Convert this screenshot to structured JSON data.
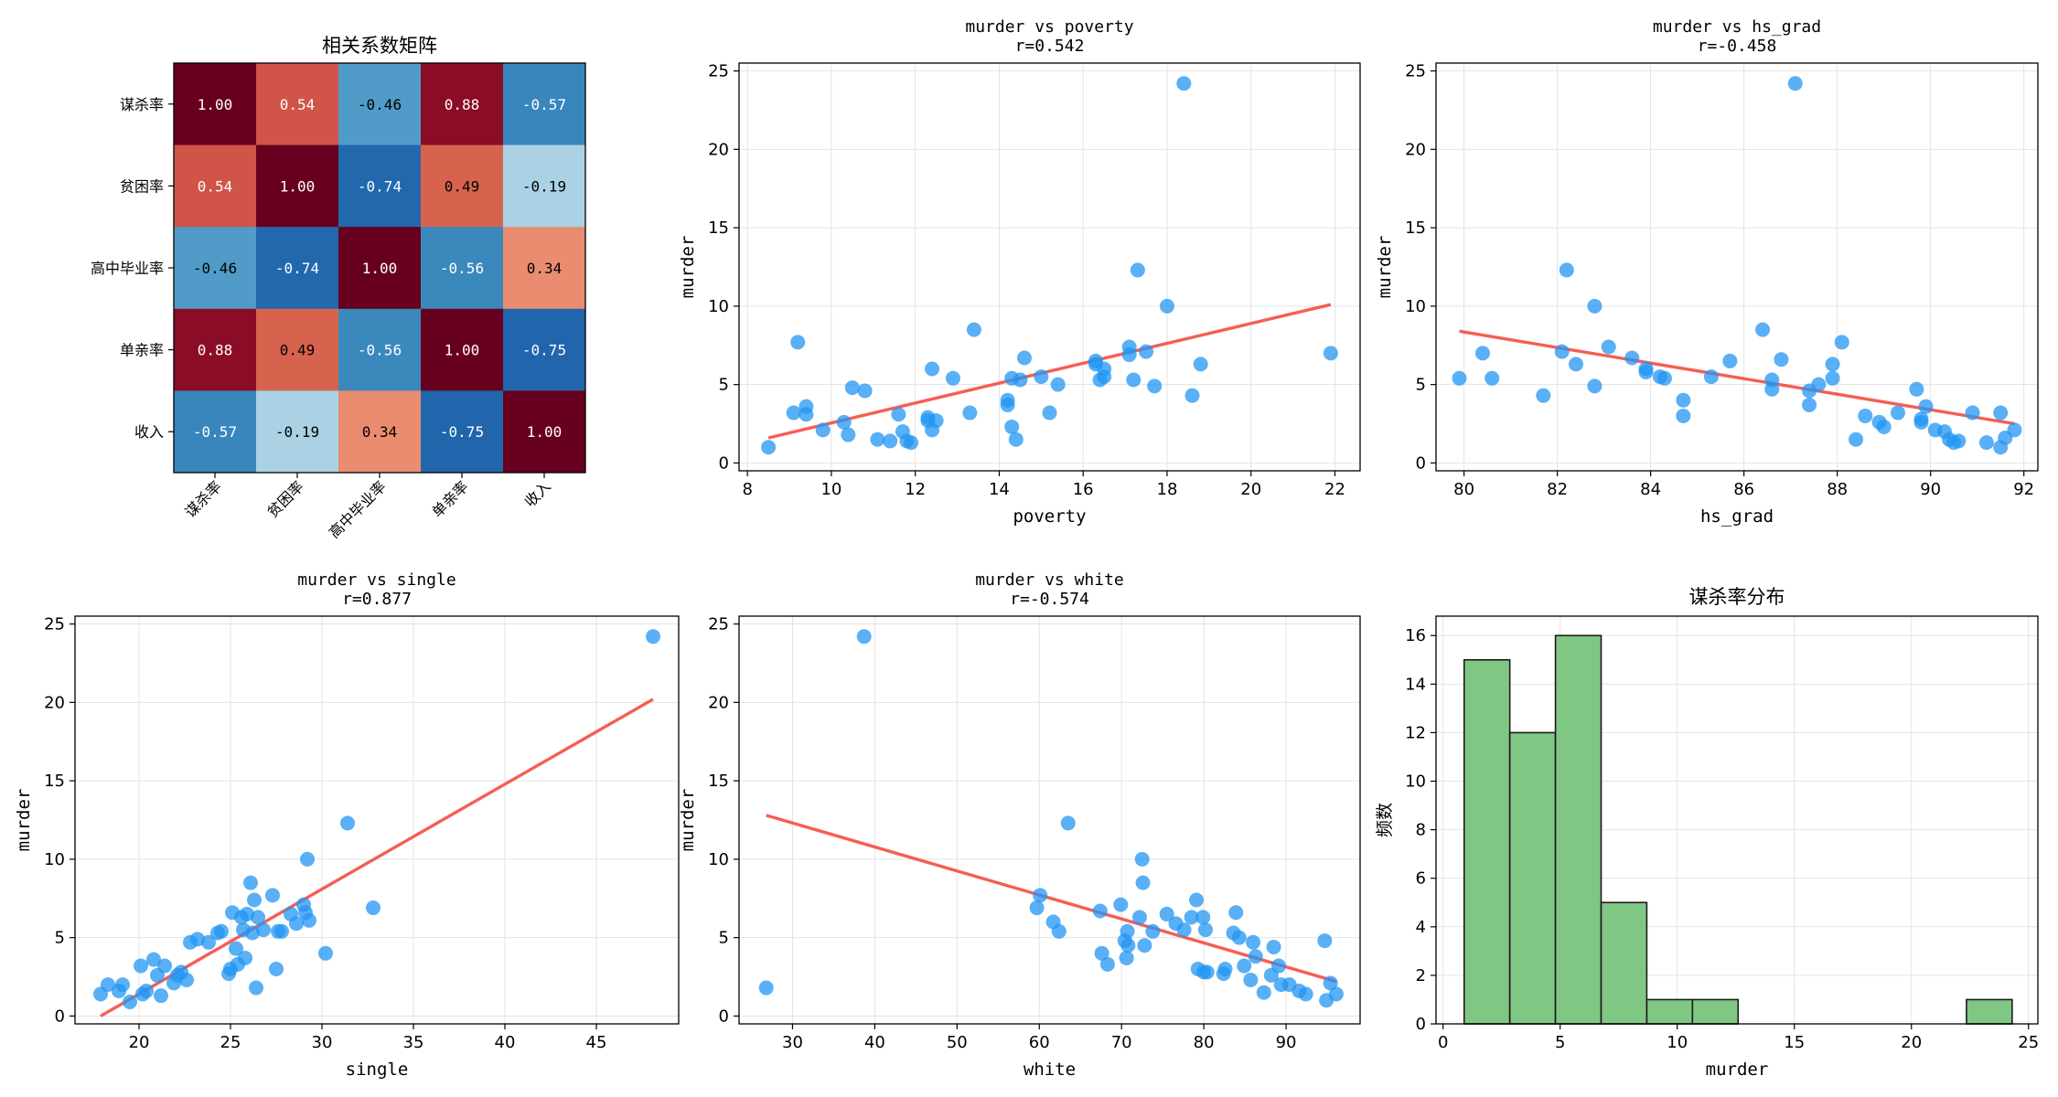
{
  "colors": {
    "scatter": "#2196F3",
    "trend": "#F44336",
    "hist_fill": "#81C784",
    "hist_edge": "#1b1b1b",
    "grid": "#e3e3e3",
    "heat_low": "#2166ac",
    "heat_mid": "#f7f7f7",
    "heat_high": "#67001f"
  },
  "chart_data": [
    {
      "type": "heatmap",
      "title": "相关系数矩阵",
      "labels": [
        "谋杀率",
        "贫困率",
        "高中毕业率",
        "单亲率",
        "收入"
      ],
      "values": [
        [
          1.0,
          0.54,
          -0.46,
          0.88,
          -0.57
        ],
        [
          0.54,
          1.0,
          -0.74,
          0.49,
          -0.19
        ],
        [
          -0.46,
          -0.74,
          1.0,
          -0.56,
          0.34
        ],
        [
          0.88,
          0.49,
          -0.56,
          1.0,
          -0.75
        ],
        [
          -0.57,
          -0.19,
          0.34,
          -0.75,
          1.0
        ]
      ],
      "cell_text": [
        [
          "1.00",
          "0.54",
          "-0.46",
          "0.88",
          "-0.57"
        ],
        [
          "0.54",
          "1.00",
          "-0.74",
          "0.49",
          "-0.19"
        ],
        [
          "-0.46",
          "-0.74",
          "1.00",
          "-0.56",
          "0.34"
        ],
        [
          "0.88",
          "0.49",
          "-0.56",
          "1.00",
          "-0.75"
        ],
        [
          "-0.57",
          "-0.19",
          "0.34",
          "-0.75",
          "1.00"
        ]
      ],
      "colormap": "RdBu_r",
      "vlim": [
        -1,
        1
      ]
    },
    {
      "type": "scatter",
      "title": "murder vs poverty",
      "subtitle": "r=0.542",
      "xlabel": "poverty",
      "ylabel": "murder",
      "xlim": [
        7.8,
        22.6
      ],
      "ylim": [
        -0.5,
        25.5
      ],
      "xticks": [
        8,
        10,
        12,
        14,
        16,
        18,
        20,
        22
      ],
      "yticks": [
        0,
        5,
        10,
        15,
        20,
        25
      ],
      "grid": true,
      "trend": {
        "x": [
          8.5,
          21.9
        ],
        "y": [
          1.6,
          10.1
        ]
      },
      "points": {
        "x": [
          8.5,
          9.1,
          9.2,
          9.4,
          9.4,
          9.8,
          10.3,
          10.4,
          10.5,
          10.8,
          11.1,
          11.4,
          11.6,
          11.7,
          11.8,
          11.9,
          12.3,
          12.3,
          12.4,
          12.4,
          12.5,
          12.9,
          13.3,
          13.4,
          14.2,
          14.2,
          14.3,
          14.3,
          14.4,
          14.5,
          14.6,
          15.0,
          15.2,
          15.4,
          16.3,
          16.3,
          16.4,
          16.5,
          16.5,
          17.1,
          17.1,
          17.2,
          17.3,
          17.5,
          17.7,
          18.0,
          18.4,
          18.6,
          18.8,
          21.9
        ],
        "y": [
          1.0,
          3.2,
          7.7,
          3.6,
          3.1,
          2.1,
          2.6,
          1.8,
          4.8,
          4.6,
          1.5,
          1.4,
          3.1,
          2.0,
          1.4,
          1.3,
          2.9,
          2.7,
          2.1,
          6.0,
          2.7,
          5.4,
          3.2,
          8.5,
          4.0,
          3.7,
          5.4,
          2.3,
          1.5,
          5.3,
          6.7,
          5.5,
          3.2,
          5.0,
          6.5,
          6.3,
          5.3,
          6.0,
          5.5,
          7.4,
          6.9,
          5.3,
          12.3,
          7.1,
          4.9,
          10.0,
          24.2,
          4.3,
          6.3,
          7.0
        ]
      }
    },
    {
      "type": "scatter",
      "title": "murder vs hs_grad",
      "subtitle": "r=-0.458",
      "xlabel": "hs_grad",
      "ylabel": "murder",
      "xlim": [
        79.4,
        92.3
      ],
      "ylim": [
        -0.5,
        25.5
      ],
      "xticks": [
        80,
        82,
        84,
        86,
        88,
        90,
        92
      ],
      "yticks": [
        0,
        5,
        10,
        15,
        20,
        25
      ],
      "grid": true,
      "trend": {
        "x": [
          79.9,
          91.8
        ],
        "y": [
          8.4,
          2.5
        ]
      },
      "points": {
        "x": [
          79.9,
          80.4,
          80.6,
          81.7,
          82.1,
          82.2,
          82.4,
          82.8,
          82.8,
          83.1,
          83.6,
          83.9,
          83.9,
          84.2,
          84.3,
          84.7,
          84.7,
          85.3,
          85.7,
          86.4,
          86.6,
          86.6,
          86.8,
          87.1,
          87.4,
          87.4,
          87.6,
          87.9,
          87.9,
          88.1,
          88.4,
          88.6,
          88.9,
          89.0,
          89.3,
          89.7,
          89.8,
          89.8,
          89.9,
          90.1,
          90.3,
          90.4,
          90.5,
          90.6,
          90.9,
          91.2,
          91.5,
          91.5,
          91.6,
          91.8
        ],
        "y": [
          5.4,
          7.0,
          5.4,
          4.3,
          7.1,
          12.3,
          6.3,
          10.0,
          4.9,
          7.4,
          6.7,
          6.0,
          5.8,
          5.5,
          5.4,
          4.0,
          3.0,
          5.5,
          6.5,
          8.5,
          5.3,
          4.7,
          6.6,
          24.2,
          4.6,
          3.7,
          5.0,
          6.3,
          5.4,
          7.7,
          1.5,
          3.0,
          2.6,
          2.3,
          3.2,
          4.7,
          2.8,
          2.6,
          3.6,
          2.1,
          2.0,
          1.5,
          1.3,
          1.4,
          3.2,
          1.3,
          1.0,
          3.2,
          1.6,
          2.1
        ]
      }
    },
    {
      "type": "scatter",
      "title": "murder vs single",
      "subtitle": "r=0.877",
      "xlabel": "single",
      "ylabel": "murder",
      "xlim": [
        16.5,
        49.5
      ],
      "ylim": [
        -0.5,
        25.5
      ],
      "xticks": [
        20,
        25,
        30,
        35,
        40,
        45
      ],
      "yticks": [
        0,
        5,
        10,
        15,
        20,
        25
      ],
      "grid": true,
      "trend": {
        "x": [
          17.9,
          48.1
        ],
        "y": [
          0.0,
          20.2
        ]
      },
      "points": {
        "x": [
          17.9,
          18.3,
          18.9,
          19.1,
          19.5,
          20.1,
          20.2,
          20.4,
          20.8,
          21.0,
          21.2,
          21.4,
          21.9,
          22.1,
          22.3,
          22.6,
          22.8,
          23.2,
          23.8,
          24.3,
          24.5,
          24.9,
          25.0,
          25.1,
          25.3,
          25.4,
          25.6,
          25.7,
          25.8,
          25.9,
          26.1,
          26.2,
          26.3,
          26.4,
          26.5,
          26.8,
          27.3,
          27.5,
          27.6,
          27.8,
          28.3,
          28.6,
          29.0,
          29.1,
          29.2,
          29.3,
          30.2,
          31.4,
          32.8,
          48.1
        ],
        "y": [
          1.4,
          2.0,
          1.6,
          2.0,
          0.9,
          3.2,
          1.4,
          1.6,
          3.6,
          2.6,
          1.3,
          3.2,
          2.1,
          2.6,
          2.8,
          2.3,
          4.7,
          4.9,
          4.7,
          5.3,
          5.4,
          2.7,
          3.0,
          6.6,
          4.3,
          3.3,
          6.3,
          5.5,
          3.7,
          6.5,
          8.5,
          5.3,
          7.4,
          1.8,
          6.3,
          5.5,
          7.7,
          3.0,
          5.4,
          5.4,
          6.5,
          5.9,
          7.1,
          6.6,
          10.0,
          6.1,
          4.0,
          12.3,
          6.9,
          24.2
        ]
      }
    },
    {
      "type": "scatter",
      "title": "murder vs white",
      "subtitle": "r=-0.574",
      "xlabel": "white",
      "ylabel": "murder",
      "xlim": [
        23.5,
        99.0
      ],
      "ylim": [
        -0.5,
        25.5
      ],
      "xticks": [
        30,
        40,
        50,
        60,
        70,
        80,
        90
      ],
      "yticks": [
        0,
        5,
        10,
        15,
        20,
        25
      ],
      "grid": true,
      "trend": {
        "x": [
          26.8,
          96.1
        ],
        "y": [
          12.8,
          2.2
        ]
      },
      "points": {
        "x": [
          26.8,
          38.7,
          59.7,
          60.1,
          61.7,
          62.4,
          63.5,
          67.4,
          67.6,
          68.3,
          69.9,
          70.4,
          70.6,
          70.7,
          70.8,
          72.2,
          72.5,
          72.6,
          72.8,
          73.8,
          75.5,
          76.6,
          77.6,
          78.5,
          79.1,
          79.3,
          79.9,
          80.0,
          80.2,
          80.4,
          82.4,
          82.6,
          83.6,
          83.9,
          84.3,
          84.9,
          85.7,
          86.0,
          86.3,
          87.3,
          88.2,
          88.5,
          89.1,
          89.4,
          90.4,
          91.6,
          92.4,
          94.7,
          94.9,
          95.4,
          96.1
        ],
        "y": [
          1.8,
          24.2,
          6.9,
          7.7,
          6.0,
          5.4,
          12.3,
          6.7,
          4.0,
          3.3,
          7.1,
          4.8,
          3.7,
          5.4,
          4.5,
          6.3,
          10.0,
          8.5,
          4.5,
          5.4,
          6.5,
          5.9,
          5.5,
          6.3,
          7.4,
          3.0,
          6.3,
          2.8,
          5.5,
          2.8,
          2.7,
          3.0,
          5.3,
          6.6,
          5.0,
          3.2,
          2.3,
          4.7,
          3.8,
          1.5,
          2.6,
          4.4,
          3.2,
          2.0,
          2.0,
          1.6,
          1.4,
          4.8,
          1.0,
          2.1,
          1.4
        ]
      }
    },
    {
      "type": "bar",
      "title": "谋杀率分布",
      "xlabel": "murder",
      "ylabel": "频数",
      "xlim": [
        -0.3,
        25.4
      ],
      "ylim": [
        0,
        16.8
      ],
      "xticks": [
        0,
        5,
        10,
        15,
        20,
        25
      ],
      "yticks": [
        0,
        2,
        4,
        6,
        8,
        10,
        12,
        14,
        16
      ],
      "grid": true,
      "bin_edges": [
        0.9,
        2.85,
        4.8,
        6.75,
        8.7,
        10.65,
        12.6,
        14.55,
        16.5,
        18.45,
        20.4,
        22.35,
        24.3
      ],
      "counts": [
        15,
        12,
        16,
        5,
        1,
        1,
        0,
        0,
        0,
        0,
        0,
        1
      ]
    }
  ]
}
